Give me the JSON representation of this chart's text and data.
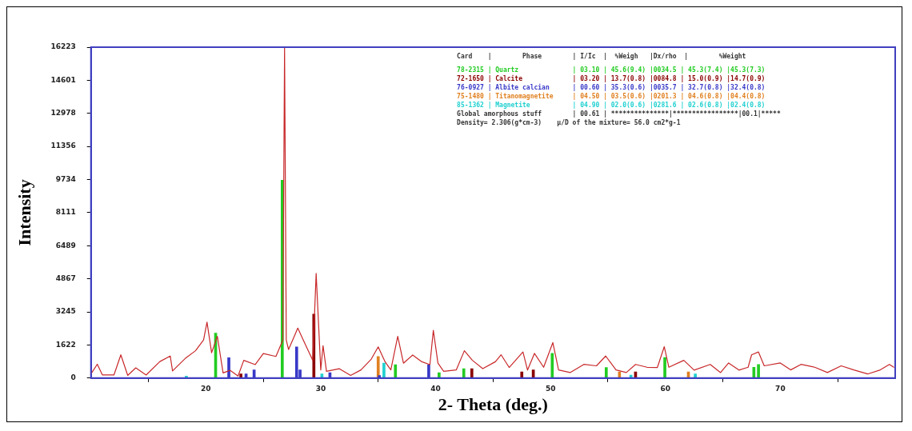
{
  "chart_data": {
    "type": "line",
    "xlabel": "2- Theta (deg.)",
    "ylabel": "Intensity",
    "xlim": [
      10,
      80
    ],
    "xticks": [
      20,
      30,
      40,
      50,
      60,
      70
    ],
    "ylim": [
      0,
      16223
    ],
    "yticks": [
      0,
      1622,
      3245,
      4867,
      6489,
      8111,
      9734,
      11356,
      12978,
      14601,
      16223
    ],
    "grid": false,
    "legend": false,
    "marker": "none",
    "line_style": "solid",
    "series": [
      {
        "color": "#c8282a",
        "x": [
          10,
          10.55,
          11,
          12,
          12.6,
          13.2,
          13.9,
          14.8,
          16,
          16.9,
          17.1,
          18.2,
          19.1,
          19.8,
          20.1,
          20.5,
          21,
          21.5,
          22.1,
          22.8,
          23.3,
          24.3,
          25,
          26.1,
          26.7,
          26.85,
          27,
          27.2,
          27.7,
          28,
          28.6,
          29.3,
          29.6,
          30,
          30.2,
          30.5,
          31.6,
          32.6,
          33.5,
          34.4,
          35,
          35.6,
          36.1,
          36.7,
          37.2,
          38,
          38.8,
          39.5,
          39.8,
          40.2,
          40.7,
          41.8,
          42.5,
          43.2,
          44.1,
          45.2,
          45.7,
          46.4,
          47.6,
          48,
          48.6,
          49.4,
          50.2,
          50.7,
          51.7,
          52.9,
          54,
          54.8,
          55.7,
          56.6,
          57.4,
          58.4,
          59.3,
          59.9,
          60.3,
          61.6,
          62.5,
          63.9,
          64.8,
          65.5,
          66.4,
          67.2,
          67.5,
          68.1,
          68.6,
          70,
          70.9,
          71.8,
          73,
          74.1,
          75.3,
          76.4,
          77.6,
          78.7,
          79.5,
          79.9
        ],
        "values": [
          200,
          680,
          150,
          150,
          1140,
          130,
          500,
          150,
          810,
          1080,
          350,
          960,
          1340,
          1870,
          2740,
          1240,
          2050,
          250,
          380,
          100,
          870,
          660,
          1200,
          1060,
          1860,
          16200,
          1860,
          1400,
          2050,
          2450,
          1720,
          870,
          5130,
          400,
          1590,
          330,
          460,
          130,
          400,
          930,
          1530,
          800,
          400,
          2050,
          730,
          1130,
          800,
          660,
          2340,
          730,
          330,
          400,
          1340,
          870,
          460,
          800,
          1140,
          520,
          1280,
          390,
          1210,
          530,
          1740,
          400,
          270,
          670,
          600,
          1080,
          400,
          270,
          670,
          530,
          520,
          1540,
          530,
          870,
          390,
          670,
          270,
          740,
          390,
          530,
          1140,
          1280,
          600,
          740,
          400,
          670,
          530,
          270,
          600,
          400,
          200,
          400,
          670,
          520
        ]
      },
      {
        "type": "bar",
        "color": "#22cc22",
        "x": [
          20.85,
          26.65,
          36.5,
          40.3,
          42.45,
          50.15,
          54.85,
          59.95,
          67.7,
          68.1
        ],
        "values": [
          2200,
          9700,
          660,
          260,
          460,
          1210,
          520,
          1010,
          530,
          670
        ]
      },
      {
        "type": "bar",
        "color": "#8b0000",
        "x": [
          23.05,
          29.4,
          43.15,
          47.5,
          48.5,
          57.4
        ],
        "values": [
          200,
          3140,
          460,
          300,
          400,
          300
        ]
      },
      {
        "type": "bar",
        "color": "#3838c8",
        "x": [
          22,
          23.5,
          24.2,
          27.9,
          28.2,
          30.8,
          35.1,
          39.4
        ],
        "values": [
          1000,
          200,
          400,
          1530,
          400,
          260,
          130,
          660
        ]
      },
      {
        "type": "bar",
        "color": "#e08020",
        "x": [
          35,
          56,
          62
        ],
        "values": [
          1060,
          300,
          300
        ]
      },
      {
        "type": "bar",
        "color": "#20d0d0",
        "x": [
          18.3,
          30.1,
          35.5,
          57,
          62.6
        ],
        "values": [
          100,
          200,
          730,
          150,
          200
        ]
      }
    ],
    "annotations": [
      "Card    |        Phase        | I/Ic  |  %Weigh   |Dx/rho  |        %Weight",
      "78-2315 | Quartz              | 03.10 | 45.6(9.4) |0034.5 | 45.3(7.4) |45.3(7.3)",
      "72-1650 | Calcite             | 03.20 | 13.7(0.8) |0084.8 | 15.0(0.9) |14.7(0.9)",
      "76-0927 | Albite calcian      | 00.60 | 35.3(0.6) |0035.7 | 32.7(0.8) |32.4(0.8)",
      "75-1480 | Titanomagnetite     | 04.50 | 03.5(0.6) |0201.3 | 04.6(0.8) |04.4(0.8)",
      "85-1362 | Magnetite           | 04.90 | 02.0(0.6) |0281.6 | 02.6(0.8) |02.4(0.8)",
      "Global amorphous stuff        | 00.61 | ***************|*****************|00.1|*****",
      "Density= 2.306(g*cm-3)    μ/D of the mixture= 56.0 cm2*g-1"
    ]
  }
}
